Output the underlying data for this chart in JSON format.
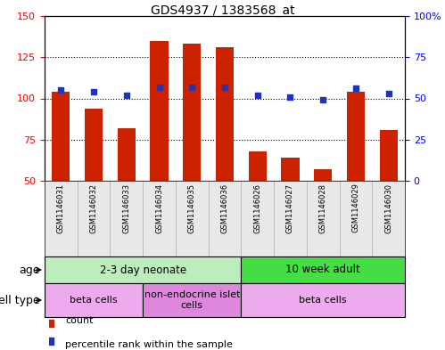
{
  "title": "GDS4937 / 1383568_at",
  "samples": [
    "GSM1146031",
    "GSM1146032",
    "GSM1146033",
    "GSM1146034",
    "GSM1146035",
    "GSM1146036",
    "GSM1146026",
    "GSM1146027",
    "GSM1146028",
    "GSM1146029",
    "GSM1146030"
  ],
  "counts": [
    104,
    94,
    82,
    135,
    133,
    131,
    68,
    64,
    57,
    104,
    81
  ],
  "percentiles": [
    55,
    54,
    52,
    57,
    57,
    57,
    52,
    51,
    49,
    56,
    53
  ],
  "ylim_left": [
    50,
    150
  ],
  "ylim_right": [
    0,
    100
  ],
  "yticks_left": [
    50,
    75,
    100,
    125,
    150
  ],
  "yticks_right": [
    0,
    25,
    50,
    75,
    100
  ],
  "bar_color": "#cc2200",
  "dot_color": "#2233bb",
  "bg_color": "#ffffff",
  "age_groups": [
    {
      "label": "2-3 day neonate",
      "start": 0,
      "end": 6,
      "color": "#bbeebb"
    },
    {
      "label": "10 week adult",
      "start": 6,
      "end": 11,
      "color": "#44dd44"
    }
  ],
  "cell_type_groups": [
    {
      "label": "beta cells",
      "start": 0,
      "end": 3,
      "color": "#eeaaee"
    },
    {
      "label": "non-endocrine islet\ncells",
      "start": 3,
      "end": 6,
      "color": "#dd88dd"
    },
    {
      "label": "beta cells",
      "start": 6,
      "end": 11,
      "color": "#eeaaee"
    }
  ],
  "legend_count_label": "count",
  "legend_pct_label": "percentile rank within the sample",
  "age_label": "age",
  "cell_type_label": "cell type",
  "grid_yticks": [
    75,
    100,
    125
  ]
}
